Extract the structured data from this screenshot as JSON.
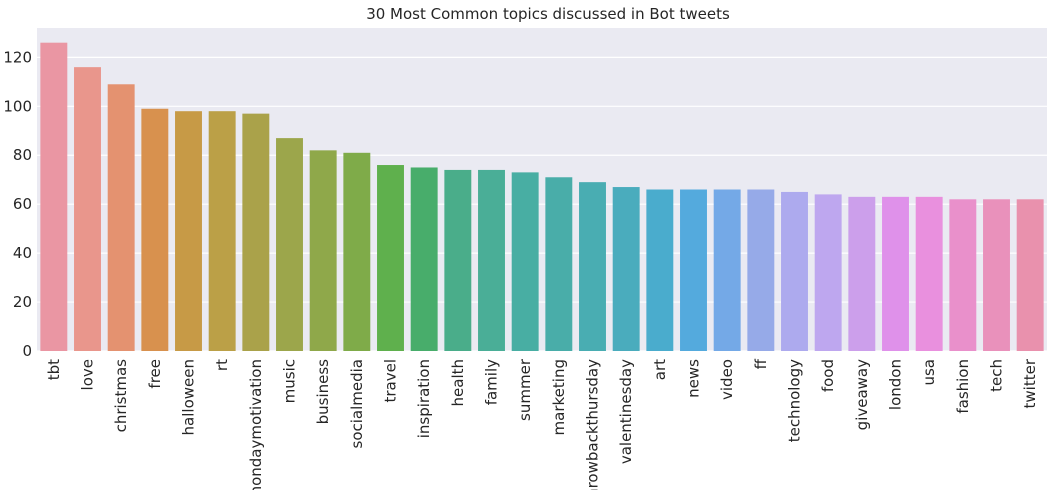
{
  "chart_data": {
    "type": "bar",
    "title": "30 Most Common topics discussed in Bot tweets",
    "xlabel": "",
    "ylabel": "",
    "ylim": [
      0,
      132
    ],
    "yticks": [
      0,
      20,
      40,
      60,
      80,
      100,
      120
    ],
    "grid": true,
    "legend": "none",
    "categories": [
      "tbt",
      "love",
      "christmas",
      "free",
      "halloween",
      "rt",
      "mondaymotivation",
      "music",
      "business",
      "socialmedia",
      "travel",
      "inspiration",
      "health",
      "family",
      "summer",
      "marketing",
      "throwbackthursday",
      "valentinesday",
      "art",
      "news",
      "video",
      "ff",
      "technology",
      "food",
      "giveaway",
      "london",
      "usa",
      "fashion",
      "tech",
      "twitter"
    ],
    "values": [
      126,
      116,
      109,
      99,
      98,
      98,
      97,
      87,
      82,
      81,
      76,
      75,
      74,
      74,
      73,
      71,
      69,
      67,
      66,
      66,
      66,
      66,
      65,
      64,
      63,
      63,
      63,
      62,
      62,
      62
    ],
    "colors": [
      "#ea96a3",
      "#e9968c",
      "#e49270",
      "#d8914e",
      "#c79a46",
      "#bba047",
      "#aaa24a",
      "#9ca64b",
      "#8fa84a",
      "#7fab49",
      "#5fb04d",
      "#48ad6b",
      "#4aad8a",
      "#4aae97",
      "#48aea3",
      "#49ada9",
      "#49adb2",
      "#4aacbd",
      "#4aaccd",
      "#54aadd",
      "#74a9e7",
      "#96aae8",
      "#adaaee",
      "#bea7ef",
      "#cc9feb",
      "#df91ea",
      "#e990de",
      "#e990cb",
      "#e991bb",
      "#e991ad"
    ]
  }
}
